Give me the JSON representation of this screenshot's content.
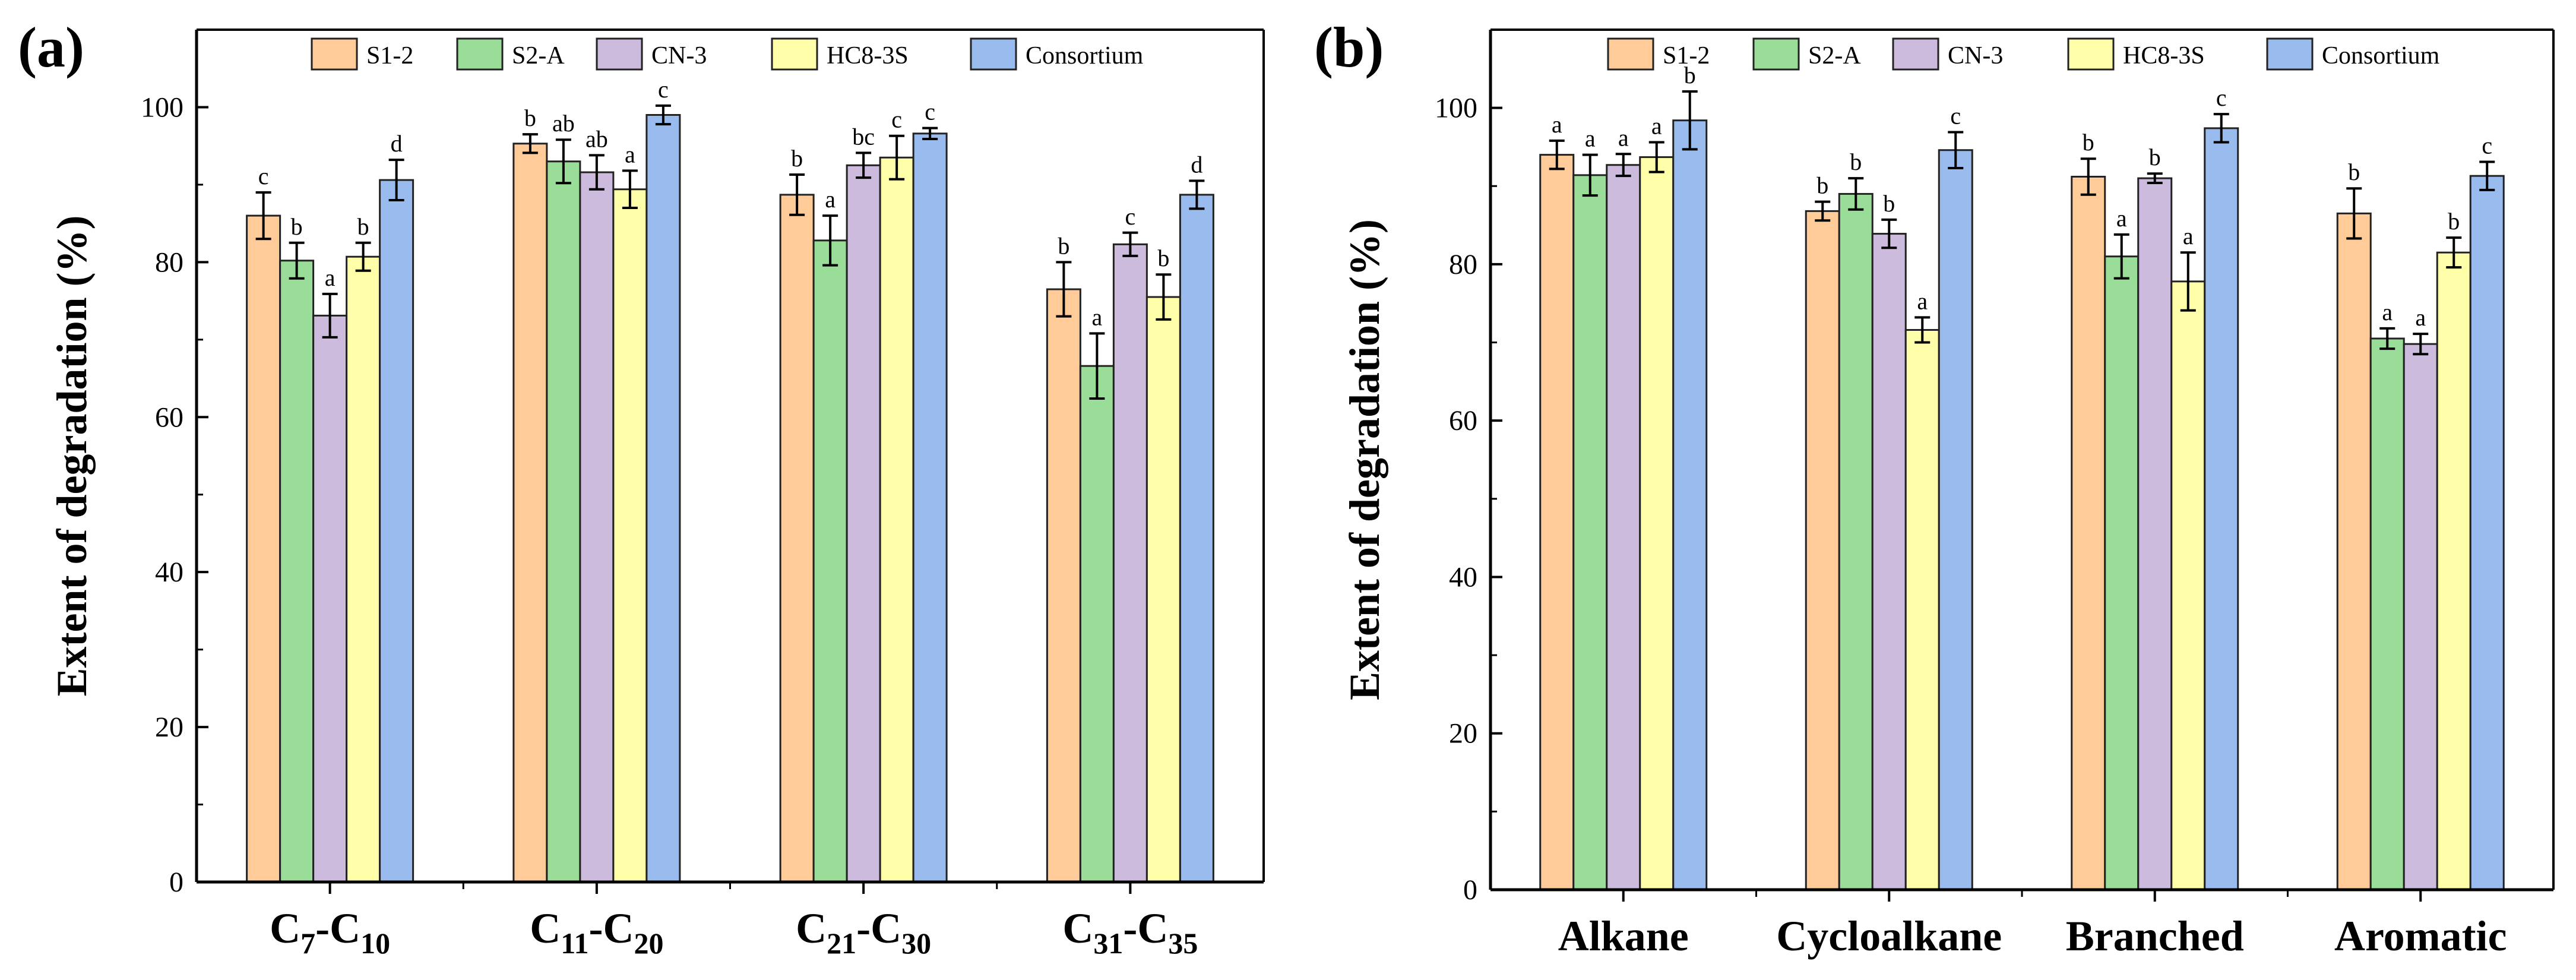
{
  "figure": {
    "panel_labels": [
      "(a)",
      "(b)"
    ]
  },
  "colors": {
    "S1-2": "#FFCC99",
    "S2-A": "#99DD99",
    "CN-3": "#CCBBDD",
    "HC8-3S": "#FFFFAA",
    "Consortium": "#99BBEE"
  },
  "chart_data": [
    {
      "type": "bar",
      "panel": "(a)",
      "title": "",
      "ylabel": "Extent of degradation (%)",
      "xlabel": "",
      "ylim": [
        0,
        110
      ],
      "yticks": [
        0,
        20,
        40,
        60,
        80,
        100
      ],
      "grid": false,
      "legend": {
        "placement": "top",
        "entries": [
          "S1-2",
          "S2-A",
          "CN-3",
          "HC8-3S",
          "Consortium"
        ]
      },
      "categories": [
        {
          "base": "C",
          "sub1": "7",
          "sep": "-C",
          "sub2": "10"
        },
        {
          "base": "C",
          "sub1": "11",
          "sep": "-C",
          "sub2": "20"
        },
        {
          "base": "C",
          "sub1": "21",
          "sep": "-C",
          "sub2": "30"
        },
        {
          "base": "C",
          "sub1": "31",
          "sep": "-C",
          "sub2": "35"
        }
      ],
      "series": [
        {
          "name": "S1-2",
          "values": [
            86,
            95.3,
            88.7,
            76.5
          ],
          "errors": [
            3.0,
            1.2,
            2.6,
            3.5
          ],
          "labels": [
            "c",
            "b",
            "b",
            "b"
          ]
        },
        {
          "name": "S2-A",
          "values": [
            80.2,
            93,
            82.8,
            66.6
          ],
          "errors": [
            2.3,
            2.8,
            3.2,
            4.2
          ],
          "labels": [
            "b",
            "ab",
            "a",
            "a"
          ]
        },
        {
          "name": "CN-3",
          "values": [
            73.1,
            91.6,
            92.5,
            82.3
          ],
          "errors": [
            2.8,
            2.2,
            1.6,
            1.5
          ],
          "labels": [
            "a",
            "ab",
            "bc",
            "c"
          ]
        },
        {
          "name": "HC8-3S",
          "values": [
            80.7,
            89.4,
            93.5,
            75.5
          ],
          "errors": [
            1.8,
            2.4,
            2.8,
            2.9
          ],
          "labels": [
            "b",
            "a",
            "c",
            "b"
          ]
        },
        {
          "name": "Consortium",
          "values": [
            90.6,
            99.0,
            96.6,
            88.7
          ],
          "errors": [
            2.6,
            1.2,
            0.7,
            1.8
          ],
          "labels": [
            "d",
            "c",
            "c",
            "d"
          ]
        }
      ]
    },
    {
      "type": "bar",
      "panel": "(b)",
      "title": "",
      "ylabel": "Extent of degradation (%)",
      "xlabel": "",
      "ylim": [
        0,
        110
      ],
      "yticks": [
        0,
        20,
        40,
        60,
        80,
        100
      ],
      "grid": false,
      "legend": {
        "placement": "top",
        "entries": [
          "S1-2",
          "S2-A",
          "CN-3",
          "HC8-3S",
          "Consortium"
        ]
      },
      "categories": [
        {
          "base": "Alkane"
        },
        {
          "base": "Cycloalkane"
        },
        {
          "base": "Branched"
        },
        {
          "base": "Aromatic"
        }
      ],
      "series": [
        {
          "name": "S1-2",
          "values": [
            94,
            86.8,
            91.2,
            86.5
          ],
          "errors": [
            1.8,
            1.2,
            2.3,
            3.2
          ],
          "labels": [
            "a",
            "b",
            "b",
            "b"
          ]
        },
        {
          "name": "S2-A",
          "values": [
            91.4,
            89,
            81,
            70.5
          ],
          "errors": [
            2.6,
            2.0,
            2.8,
            1.3
          ],
          "labels": [
            "a",
            "b",
            "a",
            "a"
          ]
        },
        {
          "name": "CN-3",
          "values": [
            92.7,
            83.9,
            91,
            69.8
          ],
          "errors": [
            1.4,
            1.8,
            0.6,
            1.3
          ],
          "labels": [
            "a",
            "b",
            "b",
            "a"
          ]
        },
        {
          "name": "HC8-3S",
          "values": [
            93.7,
            71.6,
            77.8,
            81.5
          ],
          "errors": [
            1.9,
            1.6,
            3.7,
            1.9
          ],
          "labels": [
            "a",
            "a",
            "a",
            "b"
          ]
        },
        {
          "name": "Consortium",
          "values": [
            98.4,
            94.6,
            97.4,
            91.3
          ],
          "errors": [
            3.7,
            2.3,
            1.8,
            1.8
          ],
          "labels": [
            "b",
            "c",
            "c",
            "c"
          ]
        }
      ]
    }
  ]
}
